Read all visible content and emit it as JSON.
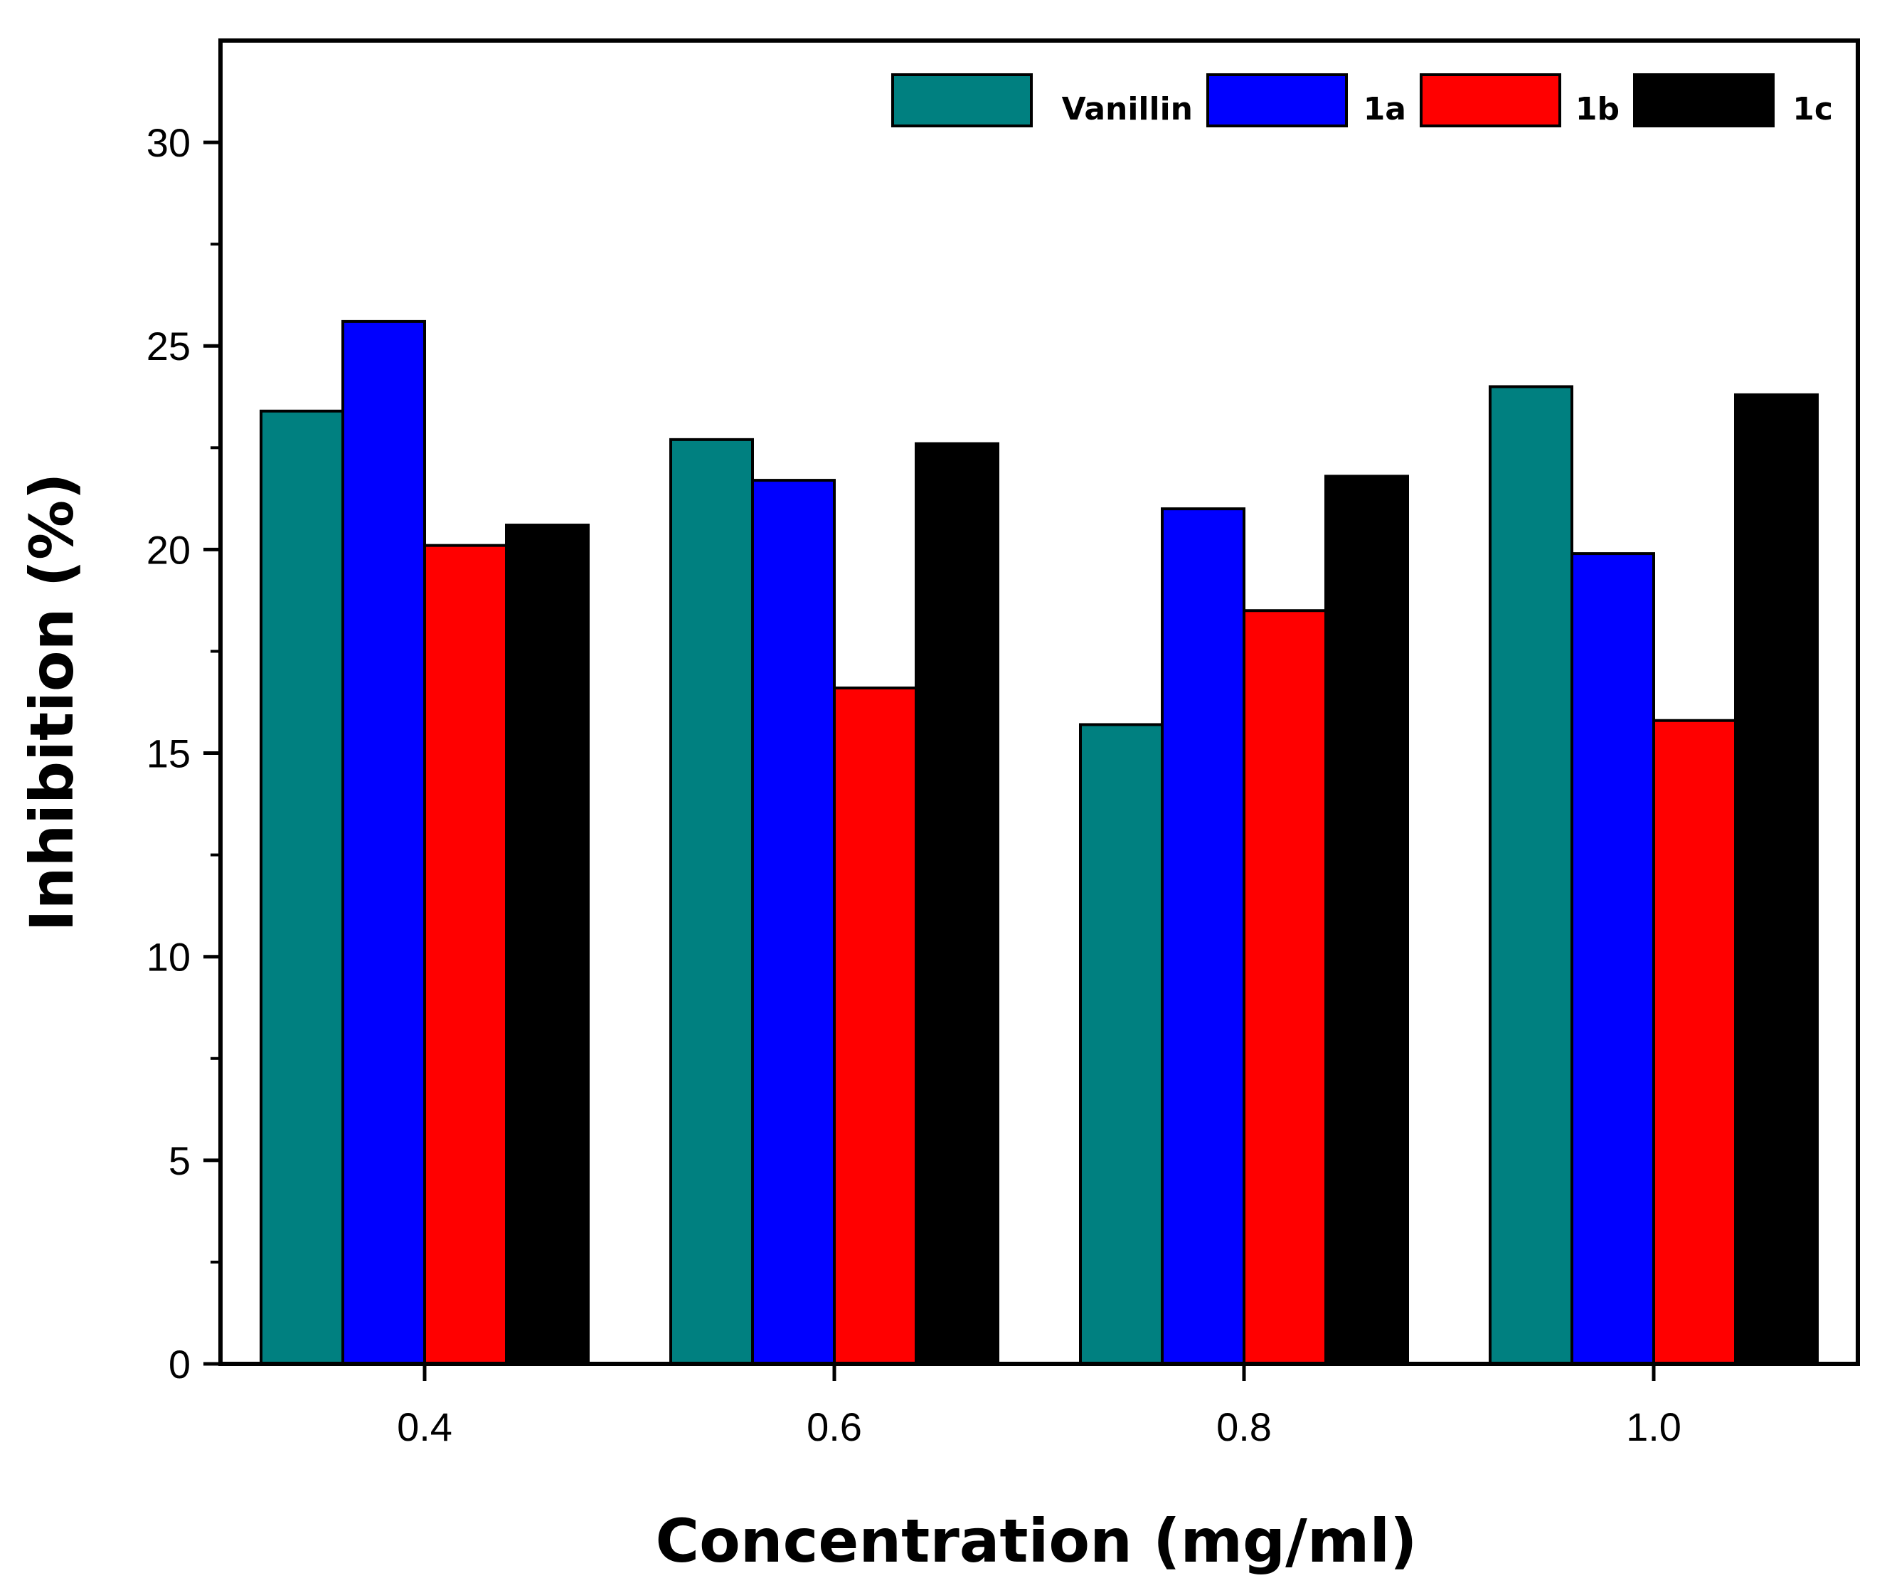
{
  "chart_data": {
    "type": "bar",
    "title": "",
    "xlabel": "Concentration (mg/ml)",
    "ylabel": "Inhibition (%)",
    "categories": [
      "0.4",
      "0.6",
      "0.8",
      "1.0"
    ],
    "ylim": [
      0,
      32.5
    ],
    "yticks": [
      0,
      5,
      10,
      15,
      20,
      25,
      30
    ],
    "ytick_labels": [
      "0",
      "5",
      "10",
      "15",
      "20",
      "25",
      "30"
    ],
    "grid": false,
    "legend_position": "top-right",
    "series": [
      {
        "name": "Vanillin",
        "color": "#008080",
        "values": [
          23.4,
          22.7,
          15.7,
          24.0
        ]
      },
      {
        "name": "1a",
        "color": "#0000ff",
        "values": [
          25.6,
          21.7,
          21.0,
          19.9
        ]
      },
      {
        "name": "1b",
        "color": "#ff0000",
        "values": [
          20.1,
          16.6,
          18.5,
          15.8
        ]
      },
      {
        "name": "1c",
        "color": "#000000",
        "values": [
          20.6,
          22.6,
          21.8,
          23.8
        ]
      }
    ]
  }
}
